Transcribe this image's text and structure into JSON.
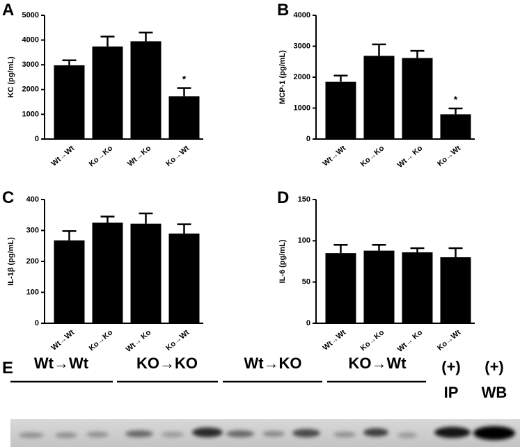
{
  "panel_labels": [
    "A",
    "B",
    "C",
    "D",
    "E"
  ],
  "chart_data": [
    {
      "type": "bar",
      "y_label": "KC (pg/mL)",
      "categories": [
        "Wt→Wt",
        "Ko→Ko",
        "Wt→Ko",
        "Ko→Wt"
      ],
      "values": [
        2980,
        3740,
        3950,
        1730
      ],
      "errors": [
        200,
        400,
        350,
        330
      ],
      "color": "#000000",
      "ylim": [
        0,
        5000
      ],
      "yticks": [
        0,
        1000,
        2000,
        3000,
        4000,
        5000
      ],
      "annotations": [
        {
          "text": "*",
          "category": "Ko→Wt"
        }
      ]
    },
    {
      "type": "bar",
      "y_label": "MCP-1 (pg/mL)",
      "categories": [
        "Wt→Wt",
        "Ko→Ko",
        "Wt→ Ko",
        "Ko→Wt"
      ],
      "values": [
        1850,
        2690,
        2620,
        800
      ],
      "errors": [
        200,
        370,
        230,
        190
      ],
      "color": "#000000",
      "ylim": [
        0,
        4000
      ],
      "yticks": [
        0,
        1000,
        2000,
        3000,
        4000
      ],
      "annotations": [
        {
          "text": "*",
          "category": "Ko→Wt"
        }
      ]
    },
    {
      "type": "bar",
      "y_label": "IL-1β (pg/mL)",
      "categories": [
        "Wt→Wt",
        "Ko→Ko",
        "Wt→ Ko",
        "Ko→Wt"
      ],
      "values": [
        268,
        325,
        322,
        290
      ],
      "errors": [
        30,
        20,
        33,
        30
      ],
      "color": "#000000",
      "ylim": [
        0,
        400
      ],
      "yticks": [
        0,
        100,
        200,
        300,
        400
      ],
      "annotations": []
    },
    {
      "type": "bar",
      "y_label": "IL-6 (pg/mL)",
      "categories": [
        "Wt→Wt",
        "Ko→Ko",
        "Wt→ Ko",
        "Ko→Wt"
      ],
      "values": [
        85,
        88,
        86,
        80
      ],
      "errors": [
        10,
        7,
        5,
        11
      ],
      "color": "#000000",
      "ylim": [
        0,
        150
      ],
      "yticks": [
        0,
        50,
        100,
        150
      ],
      "annotations": []
    }
  ],
  "blot": {
    "groups": [
      "Wt→Wt",
      "KO→KO",
      "Wt→KO",
      "KO→Wt"
    ],
    "controls": [
      {
        "sign": "(+)",
        "label": "IP"
      },
      {
        "sign": "(+)",
        "label": "WB"
      }
    ]
  }
}
